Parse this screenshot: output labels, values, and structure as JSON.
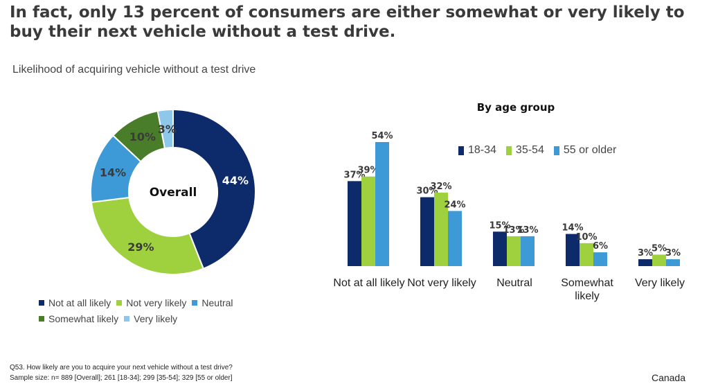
{
  "headline": "In fact, only 13 percent of consumers are either somewhat or very likely to buy their next vehicle without a test drive.",
  "colors": {
    "not_at_all": "#0d2a6b",
    "not_very": "#9fd13f",
    "neutral": "#3d9ad6",
    "somewhat": "#4a7d2a",
    "very": "#8fc7ea",
    "age_18_34": "#0d2a6b",
    "age_35_54": "#9fd13f",
    "age_55_plus": "#3d9ad6"
  },
  "chart_data": [
    {
      "type": "pie",
      "title": "Likelihood of acquiring vehicle without a test drive",
      "center_label": "Overall",
      "labels": [
        "Not at all likely",
        "Not very likely",
        "Neutral",
        "Somewhat likely",
        "Very likely"
      ],
      "values": [
        44,
        29,
        14,
        10,
        3
      ],
      "value_labels": [
        "44%",
        "29%",
        "14%",
        "10%",
        "3%"
      ],
      "legend_position": "bottom"
    },
    {
      "type": "bar",
      "title": "By age group",
      "categories": [
        "Not at all likely",
        "Not very likely",
        "Neutral",
        "Somewhat likely",
        "Very likely"
      ],
      "series": [
        {
          "name": "18-34",
          "values": [
            37,
            30,
            15,
            14,
            3
          ],
          "value_labels": [
            "37%",
            "30%",
            "15%",
            "14%",
            "3%"
          ]
        },
        {
          "name": "35-54",
          "values": [
            39,
            32,
            13,
            10,
            5
          ],
          "value_labels": [
            "39%",
            "32%",
            "13%",
            "10%",
            "5%"
          ]
        },
        {
          "name": "55 or older",
          "values": [
            54,
            24,
            13,
            6,
            3
          ],
          "value_labels": [
            "54%",
            "24%",
            "13%",
            "6%",
            "3%"
          ]
        }
      ],
      "ylim": [
        0,
        54
      ],
      "grid": false,
      "legend_position": "top-right"
    }
  ],
  "footnote": {
    "question": "Q53. How likely are you to acquire your next vehicle without a test drive?",
    "sample": "Sample size: n= 889 [Overall]; 261 [18-34]; 299 [35-54]; 329 [55 or older]"
  },
  "country": "Canada"
}
